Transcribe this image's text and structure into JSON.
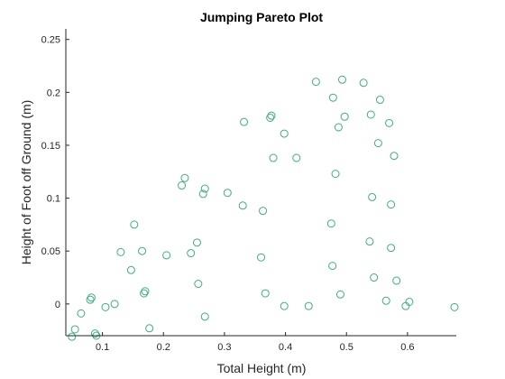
{
  "chart_data": {
    "type": "scatter",
    "title": "Jumping Pareto Plot",
    "xlabel": "Total Height (m)",
    "ylabel": "Height of Foot off Ground (m)",
    "xlim": [
      0.04,
      0.68
    ],
    "ylim": [
      -0.03,
      0.26
    ],
    "xticks": [
      0.1,
      0.2,
      0.3,
      0.4,
      0.5,
      0.6
    ],
    "xtick_labels": [
      "0.1",
      "0.2",
      "0.3",
      "0.4",
      "0.5",
      "0.6"
    ],
    "yticks": [
      0,
      0.05,
      0.1,
      0.15,
      0.2,
      0.25
    ],
    "ytick_labels": [
      "0",
      "0.05",
      "0.1",
      "0.15",
      "0.2",
      "0.25"
    ],
    "grid": false,
    "marker_color": "#3fae7c",
    "series": [
      {
        "marker": "circle-open",
        "points": [
          [
            0.05,
            -0.031
          ],
          [
            0.055,
            -0.024
          ],
          [
            0.065,
            -0.009
          ],
          [
            0.08,
            0.004
          ],
          [
            0.082,
            0.006
          ],
          [
            0.088,
            -0.028
          ],
          [
            0.09,
            -0.03
          ],
          [
            0.105,
            -0.003
          ],
          [
            0.12,
            0.0
          ],
          [
            0.13,
            0.049
          ],
          [
            0.147,
            0.032
          ],
          [
            0.152,
            0.075
          ],
          [
            0.165,
            0.05
          ],
          [
            0.168,
            0.01
          ],
          [
            0.17,
            0.012
          ],
          [
            0.177,
            -0.023
          ],
          [
            0.205,
            0.046
          ],
          [
            0.23,
            0.112
          ],
          [
            0.235,
            0.119
          ],
          [
            0.245,
            0.048
          ],
          [
            0.255,
            0.058
          ],
          [
            0.257,
            0.019
          ],
          [
            0.265,
            0.104
          ],
          [
            0.268,
            0.109
          ],
          [
            0.268,
            -0.012
          ],
          [
            0.305,
            0.105
          ],
          [
            0.33,
            0.093
          ],
          [
            0.332,
            0.172
          ],
          [
            0.36,
            0.044
          ],
          [
            0.363,
            0.088
          ],
          [
            0.367,
            0.01
          ],
          [
            0.375,
            0.176
          ],
          [
            0.377,
            0.178
          ],
          [
            0.38,
            0.138
          ],
          [
            0.398,
            -0.002
          ],
          [
            0.398,
            0.161
          ],
          [
            0.418,
            0.138
          ],
          [
            0.438,
            -0.002
          ],
          [
            0.45,
            0.21
          ],
          [
            0.475,
            0.076
          ],
          [
            0.477,
            0.036
          ],
          [
            0.478,
            0.195
          ],
          [
            0.482,
            0.123
          ],
          [
            0.487,
            0.167
          ],
          [
            0.49,
            0.009
          ],
          [
            0.493,
            0.212
          ],
          [
            0.497,
            0.177
          ],
          [
            0.528,
            0.209
          ],
          [
            0.538,
            0.059
          ],
          [
            0.54,
            0.179
          ],
          [
            0.542,
            0.101
          ],
          [
            0.545,
            0.025
          ],
          [
            0.552,
            0.152
          ],
          [
            0.555,
            0.193
          ],
          [
            0.565,
            0.003
          ],
          [
            0.57,
            0.171
          ],
          [
            0.573,
            0.053
          ],
          [
            0.573,
            0.094
          ],
          [
            0.578,
            0.14
          ],
          [
            0.582,
            0.022
          ],
          [
            0.597,
            -0.002
          ],
          [
            0.603,
            0.002
          ],
          [
            0.677,
            -0.003
          ]
        ]
      }
    ]
  }
}
